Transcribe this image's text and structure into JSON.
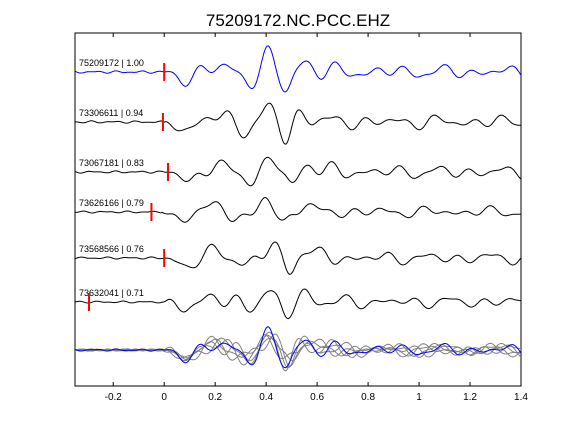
{
  "chart_data": {
    "type": "line",
    "title": "75209172.NC.PCC.EHZ",
    "xlabel": "",
    "ylabel": "",
    "xlim": [
      -0.35,
      1.4
    ],
    "grid": false,
    "x_ticks": [
      -0.2,
      0,
      0.2,
      0.4,
      0.6,
      0.8,
      1,
      1.2,
      1.4
    ],
    "x_tick_labels": [
      "-0.2",
      "0",
      "0.2",
      "0.4",
      "0.6",
      "0.8",
      "1",
      "1.2",
      "1.4"
    ],
    "colors": {
      "master": "#0000ff",
      "trace": "#000000",
      "pick": "#ff0000",
      "stack": "#808080"
    },
    "series": [
      {
        "label": "75209172 | 1.00",
        "pick_time": 0.0,
        "lag": 0.0,
        "color": "#0000ff"
      },
      {
        "label": "73306611 | 0.94",
        "pick_time": -0.005,
        "lag": 0.0,
        "color": "#000000"
      },
      {
        "label": "73067181 | 0.83",
        "pick_time": 0.015,
        "lag": 0.02,
        "color": "#000000"
      },
      {
        "label": "73626166 | 0.79",
        "pick_time": -0.05,
        "lag": -0.01,
        "color": "#000000"
      },
      {
        "label": "73568566 | 0.76",
        "pick_time": 0.0,
        "lag": 0.01,
        "color": "#000000"
      },
      {
        "label": "73632041 | 0.71",
        "pick_time": -0.295,
        "lag": -0.005,
        "color": "#000000"
      }
    ]
  }
}
